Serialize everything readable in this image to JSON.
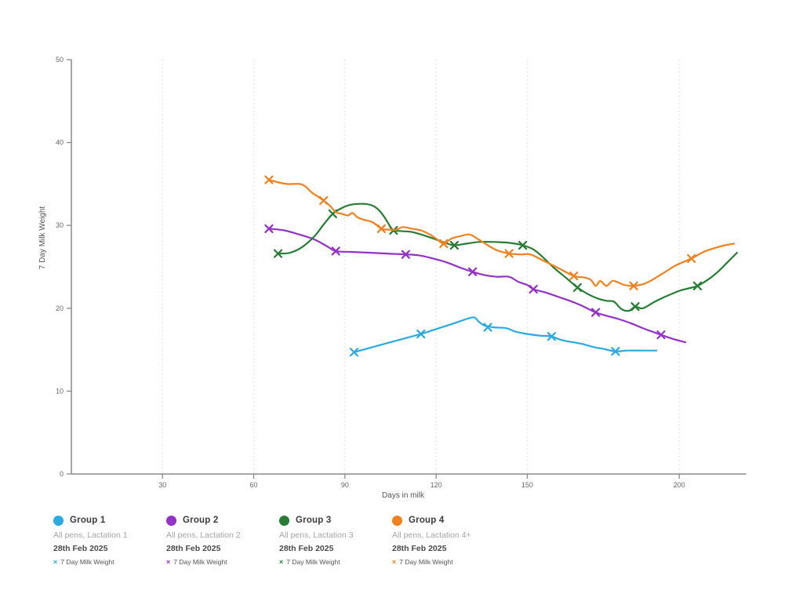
{
  "chart_data": {
    "type": "line",
    "title": "",
    "xlabel": "Days in milk",
    "ylabel": "7 Day Milk Weight",
    "xlim": [
      0,
      222
    ],
    "ylim": [
      0,
      50
    ],
    "x_ticks": [
      30,
      60,
      90,
      120,
      150,
      200
    ],
    "y_ticks": [
      0,
      10,
      20,
      30,
      40,
      50
    ],
    "grid": "vertical-dotted",
    "legend_position": "bottom",
    "axis_color": "#8a8a8a",
    "grid_color": "#e9e9e9",
    "series": [
      {
        "name": "Group 1",
        "subtitle": "All pens, Lactation 1",
        "date": "28th Feb 2025",
        "metric": "7 Day Milk Weight",
        "color": "#29abe2",
        "marker": "x",
        "markers": [
          [
            93,
            14.7
          ],
          [
            115,
            16.9
          ],
          [
            137,
            17.7
          ],
          [
            158,
            16.6
          ],
          [
            179,
            14.8
          ]
        ],
        "path": [
          [
            93,
            14.7
          ],
          [
            99,
            15.3
          ],
          [
            105,
            15.9
          ],
          [
            110,
            16.4
          ],
          [
            115,
            16.9
          ],
          [
            121,
            17.6
          ],
          [
            126,
            18.2
          ],
          [
            130,
            18.7
          ],
          [
            132.5,
            18.9
          ],
          [
            134,
            18.4
          ],
          [
            136,
            17.9
          ],
          [
            139,
            17.7
          ],
          [
            143,
            17.6
          ],
          [
            146,
            17.2
          ],
          [
            150,
            16.9
          ],
          [
            154,
            16.7
          ],
          [
            158,
            16.6
          ],
          [
            161,
            16.2
          ],
          [
            165,
            15.9
          ],
          [
            168,
            15.7
          ],
          [
            172,
            15.3
          ],
          [
            175,
            15.1
          ],
          [
            179,
            14.8
          ],
          [
            183,
            14.9
          ],
          [
            188,
            14.9
          ],
          [
            192.5,
            14.9
          ]
        ]
      },
      {
        "name": "Group 2",
        "subtitle": "All pens, Lactation 2",
        "date": "28th Feb 2025",
        "metric": "7 Day Milk Weight",
        "color": "#9432c8",
        "marker": "x",
        "markers": [
          [
            65,
            29.6
          ],
          [
            87,
            26.9
          ],
          [
            110,
            26.5
          ],
          [
            132,
            24.4
          ],
          [
            152,
            22.3
          ],
          [
            172.5,
            19.5
          ],
          [
            194,
            16.8
          ]
        ],
        "path": [
          [
            65,
            29.6
          ],
          [
            70,
            29.4
          ],
          [
            75,
            28.9
          ],
          [
            80,
            28.3
          ],
          [
            84,
            27.5
          ],
          [
            87,
            26.9
          ],
          [
            92,
            26.8
          ],
          [
            98,
            26.7
          ],
          [
            104,
            26.6
          ],
          [
            110,
            26.5
          ],
          [
            114,
            26.4
          ],
          [
            118,
            26.1
          ],
          [
            123,
            25.6
          ],
          [
            128,
            24.9
          ],
          [
            132,
            24.4
          ],
          [
            136,
            24.0
          ],
          [
            140,
            23.8
          ],
          [
            144,
            23.8
          ],
          [
            147,
            23.2
          ],
          [
            150,
            22.8
          ],
          [
            152,
            22.3
          ],
          [
            156,
            21.9
          ],
          [
            160,
            21.4
          ],
          [
            164,
            20.9
          ],
          [
            168,
            20.3
          ],
          [
            172.5,
            19.5
          ],
          [
            176,
            19.1
          ],
          [
            180,
            18.7
          ],
          [
            184,
            18.2
          ],
          [
            188,
            17.6
          ],
          [
            191,
            17.2
          ],
          [
            194,
            16.8
          ],
          [
            198,
            16.3
          ],
          [
            202,
            15.9
          ]
        ]
      },
      {
        "name": "Group 3",
        "subtitle": "All pens, Lactation 3",
        "date": "28th Feb 2025",
        "metric": "7 Day Milk Weight",
        "color": "#277d33",
        "marker": "x",
        "markers": [
          [
            68,
            26.6
          ],
          [
            86,
            31.4
          ],
          [
            106,
            29.4
          ],
          [
            126,
            27.6
          ],
          [
            148.5,
            27.6
          ],
          [
            166.5,
            22.5
          ],
          [
            185.5,
            20.2
          ],
          [
            206,
            22.7
          ]
        ],
        "path": [
          [
            68,
            26.6
          ],
          [
            72,
            26.7
          ],
          [
            76,
            27.4
          ],
          [
            80,
            28.7
          ],
          [
            83,
            30.1
          ],
          [
            86,
            31.4
          ],
          [
            89,
            32.1
          ],
          [
            92,
            32.5
          ],
          [
            96,
            32.6
          ],
          [
            99,
            32.4
          ],
          [
            101,
            31.9
          ],
          [
            103,
            31.0
          ],
          [
            105,
            29.8
          ],
          [
            106,
            29.4
          ],
          [
            109,
            29.3
          ],
          [
            112,
            29.2
          ],
          [
            116,
            28.8
          ],
          [
            120,
            28.3
          ],
          [
            123,
            27.9
          ],
          [
            126,
            27.6
          ],
          [
            130,
            27.8
          ],
          [
            134,
            28.0
          ],
          [
            139,
            28.0
          ],
          [
            144,
            27.9
          ],
          [
            148.5,
            27.6
          ],
          [
            152,
            27.1
          ],
          [
            155,
            26.2
          ],
          [
            159,
            24.8
          ],
          [
            163,
            23.6
          ],
          [
            166.5,
            22.5
          ],
          [
            170,
            21.7
          ],
          [
            173,
            21.2
          ],
          [
            176,
            20.9
          ],
          [
            178.5,
            20.8
          ],
          [
            181,
            19.9
          ],
          [
            183.5,
            19.7
          ],
          [
            185.5,
            20.2
          ],
          [
            188,
            20.0
          ],
          [
            192,
            20.8
          ],
          [
            196,
            21.5
          ],
          [
            200,
            22.1
          ],
          [
            203,
            22.4
          ],
          [
            206,
            22.7
          ],
          [
            210,
            23.6
          ],
          [
            213,
            24.5
          ],
          [
            216,
            25.6
          ],
          [
            219,
            26.7
          ]
        ]
      },
      {
        "name": "Group 4",
        "subtitle": "All pens, Lactation 4+",
        "date": "28th Feb 2025",
        "metric": "7 Day Milk Weight",
        "color": "#f1801f",
        "marker": "x",
        "markers": [
          [
            65,
            35.5
          ],
          [
            83,
            33.0
          ],
          [
            102,
            29.6
          ],
          [
            122.5,
            27.8
          ],
          [
            144,
            26.6
          ],
          [
            165.3,
            23.9
          ],
          [
            185,
            22.7
          ],
          [
            204,
            26.0
          ]
        ],
        "path": [
          [
            65,
            35.5
          ],
          [
            68,
            35.2
          ],
          [
            71,
            35.0
          ],
          [
            75,
            35.0
          ],
          [
            77,
            34.7
          ],
          [
            79,
            34.0
          ],
          [
            81,
            33.5
          ],
          [
            83,
            33.0
          ],
          [
            85,
            32.4
          ],
          [
            87,
            31.6
          ],
          [
            89,
            31.4
          ],
          [
            91,
            31.2
          ],
          [
            92.5,
            31.5
          ],
          [
            94,
            31.0
          ],
          [
            96,
            30.7
          ],
          [
            99,
            30.4
          ],
          [
            102,
            29.6
          ],
          [
            104,
            29.5
          ],
          [
            107,
            29.5
          ],
          [
            109,
            29.8
          ],
          [
            112,
            29.6
          ],
          [
            115,
            29.4
          ],
          [
            118,
            28.9
          ],
          [
            120,
            28.4
          ],
          [
            122.5,
            27.8
          ],
          [
            125,
            28.4
          ],
          [
            128,
            28.7
          ],
          [
            131,
            28.9
          ],
          [
            134,
            28.3
          ],
          [
            137,
            27.6
          ],
          [
            140,
            27.0
          ],
          [
            144,
            26.6
          ],
          [
            148,
            26.5
          ],
          [
            151,
            26.5
          ],
          [
            155,
            25.8
          ],
          [
            160,
            24.9
          ],
          [
            165.3,
            23.9
          ],
          [
            169,
            23.7
          ],
          [
            171,
            23.4
          ],
          [
            172.5,
            22.7
          ],
          [
            174,
            23.3
          ],
          [
            176,
            22.7
          ],
          [
            178,
            23.3
          ],
          [
            180,
            23.1
          ],
          [
            182,
            22.8
          ],
          [
            185,
            22.7
          ],
          [
            188,
            22.9
          ],
          [
            191,
            23.4
          ],
          [
            195,
            24.3
          ],
          [
            199,
            25.2
          ],
          [
            204,
            26.0
          ],
          [
            208,
            26.8
          ],
          [
            212,
            27.3
          ],
          [
            215,
            27.6
          ],
          [
            218,
            27.8
          ]
        ]
      }
    ]
  },
  "legend": {
    "marker_glyph": "×"
  }
}
